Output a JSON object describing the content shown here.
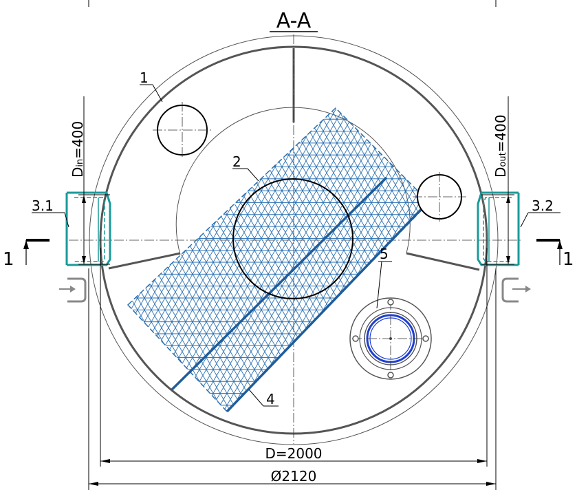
{
  "title": "A-A",
  "labels": {
    "item_1": "1",
    "item_2": "2",
    "item_3_1": "3.1",
    "item_3_2": "3.2",
    "item_4": "4",
    "item_5": "5",
    "section_left": "1",
    "section_right": "1"
  },
  "dimensions": {
    "d_in_main": "D",
    "d_in_sub": "in",
    "d_in_value": "=400",
    "d_out_main": "D",
    "d_out_sub": "out",
    "d_out_value": "=400",
    "inner_diameter": "D=2000",
    "outer_diameter": "Ø2120"
  },
  "colors": {
    "wall": "#555555",
    "pipe": "#1a9a9a",
    "media": "#1f5c9a",
    "hatch": "#2a6fb0",
    "flange_ring": "#1f3fd0"
  }
}
